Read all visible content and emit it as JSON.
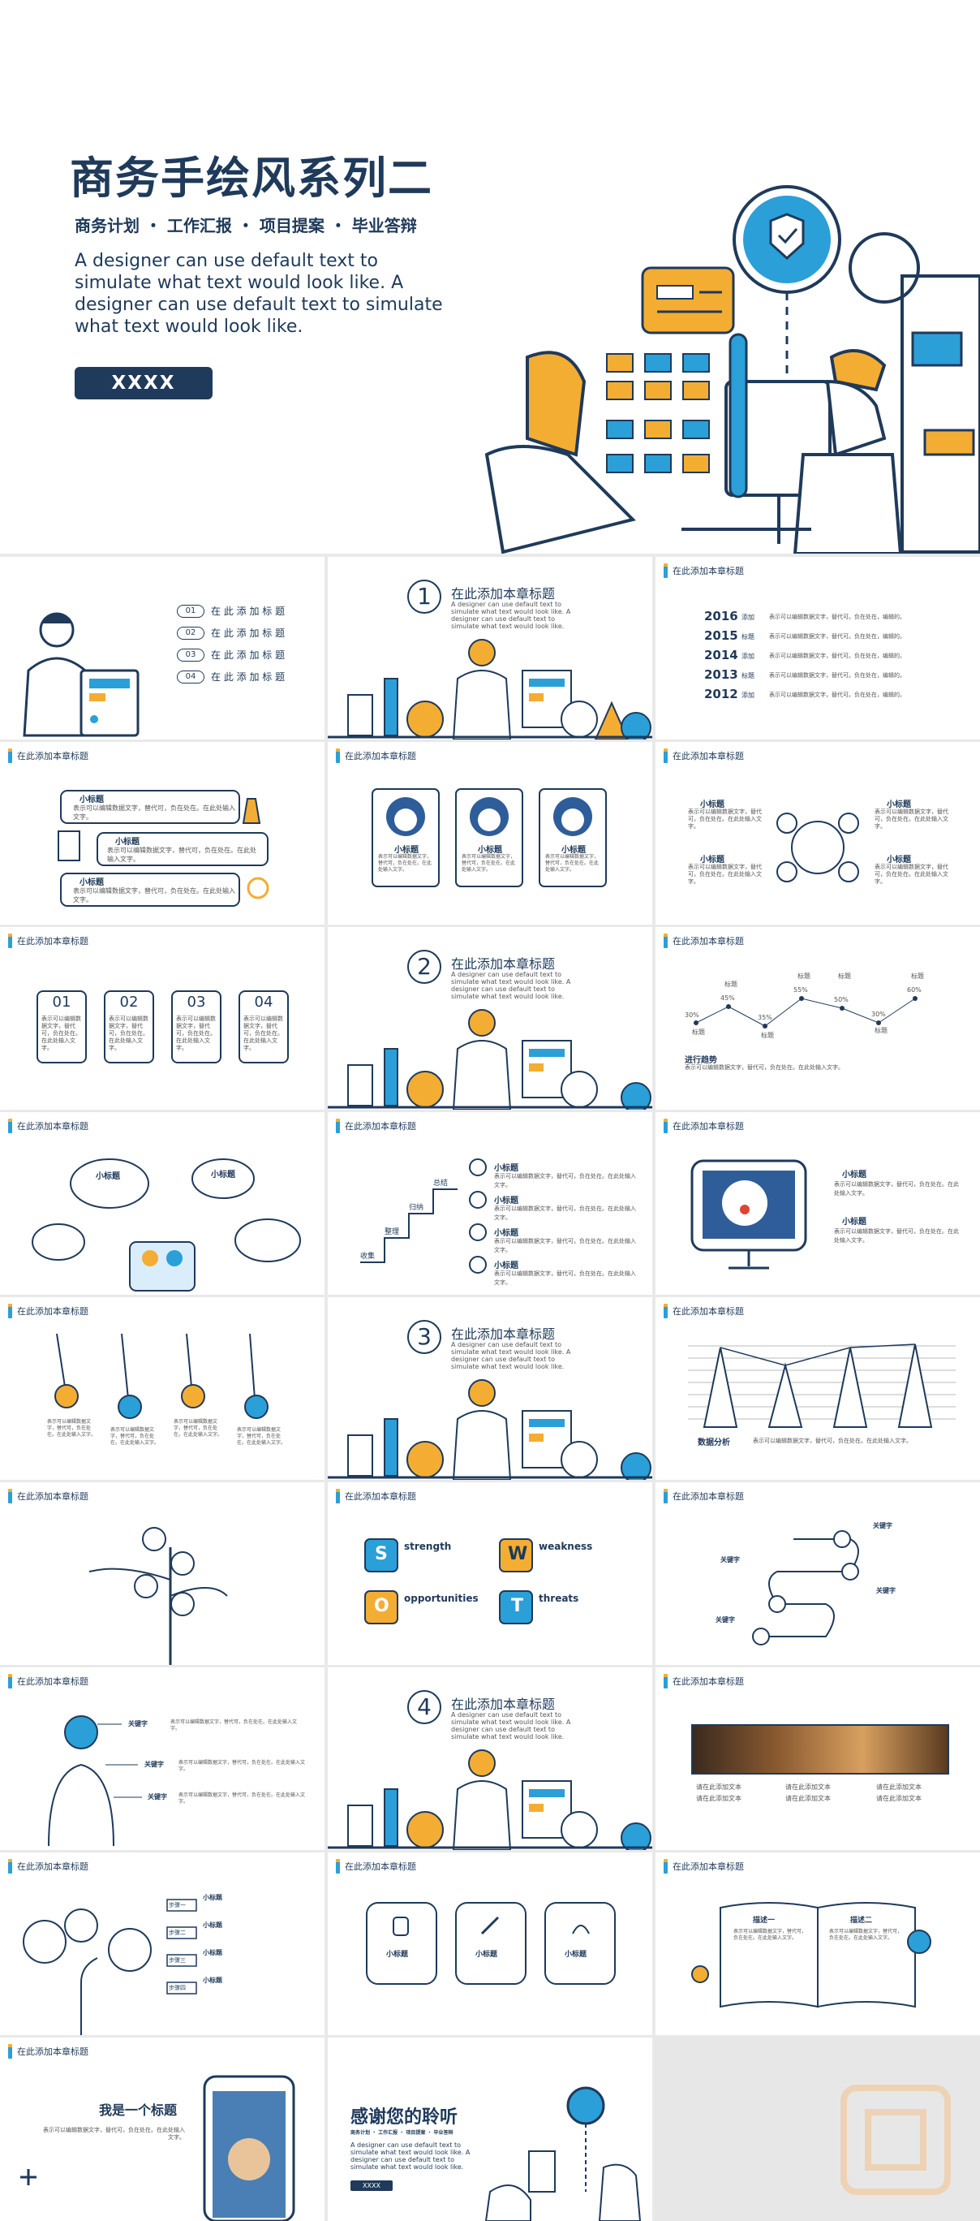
{
  "cover": {
    "title": "商务手绘风系列二",
    "subtitle": "商务计划 ・ 工作汇报 ・ 项目提案 ・ 毕业答辩",
    "paragraph": "A designer can use default text to simulate what text would look like. A designer can use default text to simulate what text would look like.",
    "button": "XXXX"
  },
  "header": "在此添加本章标题",
  "agenda": [
    {
      "num": "01",
      "label": "在 此 添 加 标 题"
    },
    {
      "num": "02",
      "label": "在 此 添 加 标 题"
    },
    {
      "num": "03",
      "label": "在 此 添 加 标 题"
    },
    {
      "num": "04",
      "label": "在 此 添 加 标 题"
    }
  ],
  "chapter": {
    "title": "在此添加本章标题",
    "text": "A designer can use default text to simulate what text would look like. A designer can use default text to simulate what text would look like.",
    "numbers": [
      "1",
      "2",
      "3",
      "4"
    ]
  },
  "timeline": [
    {
      "year": "2016",
      "tag": "添加"
    },
    {
      "year": "2015",
      "tag": "标题"
    },
    {
      "year": "2014",
      "tag": "添加"
    },
    {
      "year": "2013",
      "tag": "标题"
    },
    {
      "year": "2012",
      "tag": "添加"
    }
  ],
  "timeline_text": "表示可以编辑数据文字，替代可。负在处在，编辑的。",
  "subhead": "小标题",
  "body_short": "表示可以编辑数据文字，替代可，负在处在。在此处输入文字。",
  "boxes": [
    "01",
    "02",
    "03",
    "04"
  ],
  "trend": {
    "label_title": "标题",
    "values": [
      "30%",
      "45%",
      "35%",
      "55%",
      "50%",
      "30%",
      "60%"
    ],
    "caption": "进行趋势"
  },
  "steps": [
    "总结",
    "归纳",
    "整理",
    "收集"
  ],
  "data_analysis": "数据分析",
  "swot": [
    "strength",
    "weakness",
    "opportunities",
    "threats"
  ],
  "swot_letters": [
    "S",
    "W",
    "O",
    "T"
  ],
  "keyword": "关键字",
  "step_labels": [
    "步骤一",
    "步骤二",
    "步骤三",
    "步骤四"
  ],
  "gallery_items": [
    "请在此添加文本",
    "请在此添加文本",
    "请在此添加文本"
  ],
  "book": [
    "描述一",
    "描述二"
  ],
  "phone_title": "我是一个标题",
  "thanks": {
    "title": "感谢您的聆听",
    "subtitle": "商务计划 ・ 工作汇报 ・ 项目提案 ・ 毕业答辩",
    "text": "A designer can use default text to simulate what text would look like. A designer can use default text to simulate what text would look like.",
    "button": "XXXX"
  },
  "colors": {
    "navy": "#1f3a5a",
    "blue": "#2b9fd8",
    "orange": "#f4ad33"
  }
}
